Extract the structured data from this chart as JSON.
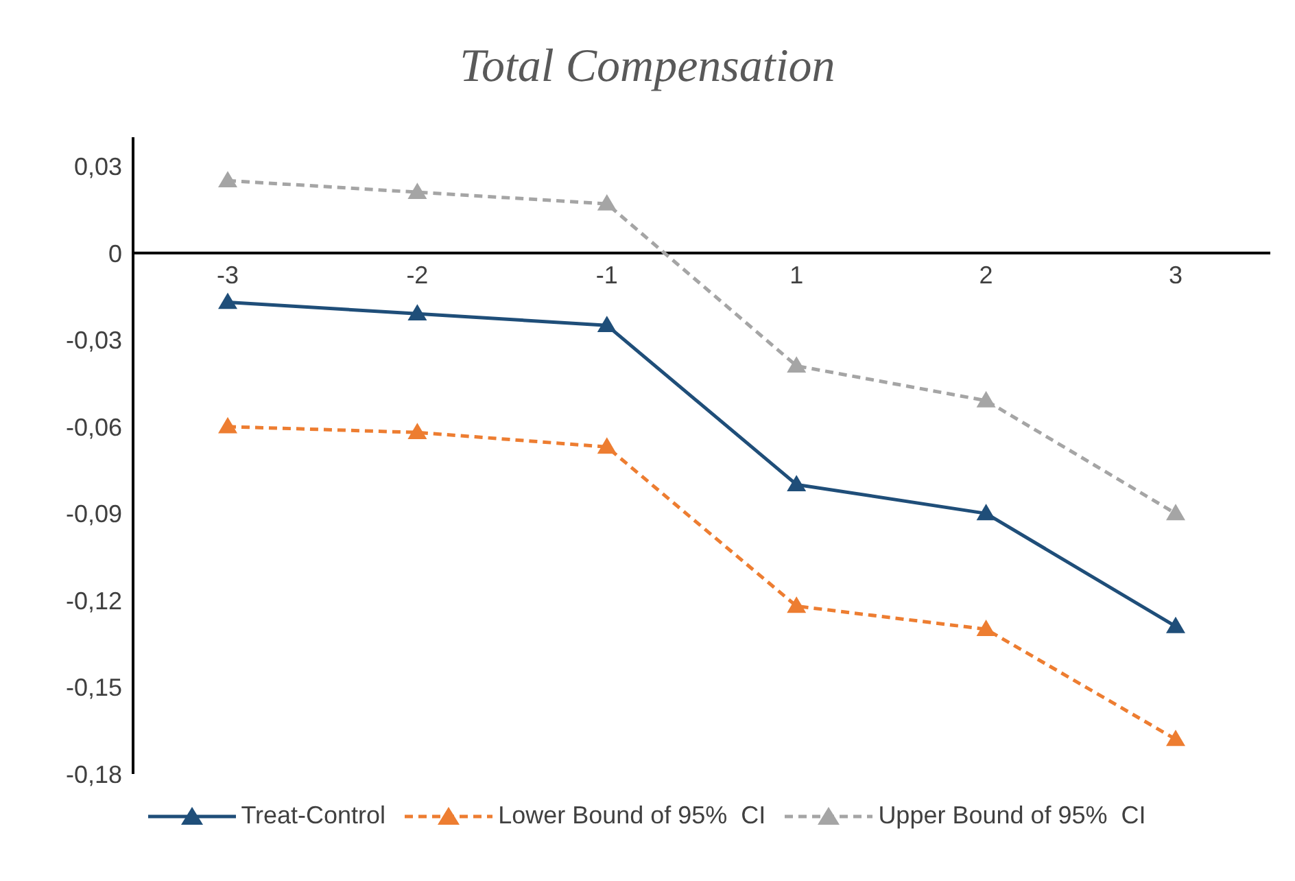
{
  "chart_data": {
    "type": "line",
    "title": "Total Compensation",
    "categories": [
      "-3",
      "-2",
      "-1",
      "1",
      "2",
      "3"
    ],
    "series": [
      {
        "name": "Treat-Control",
        "color": "#1f4e79",
        "line_style": "solid",
        "values": [
          -0.017,
          -0.021,
          -0.025,
          -0.08,
          -0.09,
          -0.129
        ]
      },
      {
        "name": "Lower Bound of 95%  CI",
        "color": "#ed7d31",
        "line_style": "dashed",
        "values": [
          -0.06,
          -0.062,
          -0.067,
          -0.122,
          -0.13,
          -0.168
        ]
      },
      {
        "name": "Upper Bound of 95%  CI",
        "color": "#a5a5a5",
        "line_style": "dashed",
        "values": [
          0.025,
          0.021,
          0.017,
          -0.039,
          -0.051,
          -0.09
        ]
      }
    ],
    "ylim": [
      -0.18,
      0.04
    ],
    "yticks": [
      {
        "value": 0.03,
        "label": "0,03"
      },
      {
        "value": 0,
        "label": "0"
      },
      {
        "value": -0.03,
        "label": "-0,03"
      },
      {
        "value": -0.06,
        "label": "-0,06"
      },
      {
        "value": -0.09,
        "label": "-0,09"
      },
      {
        "value": -0.12,
        "label": "-0,12"
      },
      {
        "value": -0.15,
        "label": "-0,15"
      },
      {
        "value": -0.18,
        "label": "-0,18"
      }
    ],
    "marker": "triangle",
    "grid": false,
    "legend": "bottom"
  }
}
